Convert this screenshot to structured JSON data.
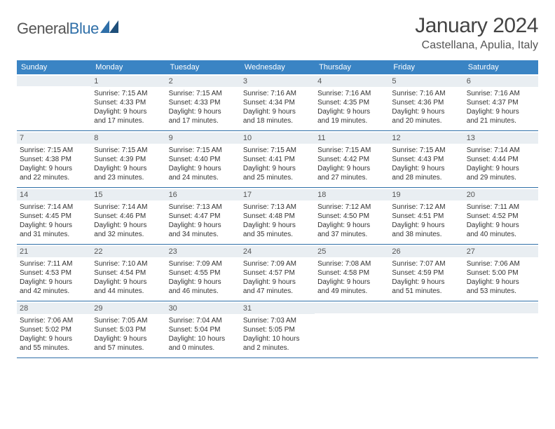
{
  "logo": {
    "text1": "General",
    "text2": "Blue"
  },
  "title": "January 2024",
  "location": "Castellana, Apulia, Italy",
  "dayHeaders": [
    "Sunday",
    "Monday",
    "Tuesday",
    "Wednesday",
    "Thursday",
    "Friday",
    "Saturday"
  ],
  "colors": {
    "headerBg": "#3a84c4",
    "accent": "#2f6fa8",
    "dayNumBg": "#e9eef2",
    "text": "#333333"
  },
  "grid": {
    "rows": 5,
    "cols": 7,
    "firstDayIndex": 1,
    "daysInMonth": 31
  },
  "days": [
    {
      "n": 1,
      "sunrise": "7:15 AM",
      "sunset": "4:33 PM",
      "dl1": "9 hours",
      "dl2": "and 17 minutes."
    },
    {
      "n": 2,
      "sunrise": "7:15 AM",
      "sunset": "4:33 PM",
      "dl1": "9 hours",
      "dl2": "and 17 minutes."
    },
    {
      "n": 3,
      "sunrise": "7:16 AM",
      "sunset": "4:34 PM",
      "dl1": "9 hours",
      "dl2": "and 18 minutes."
    },
    {
      "n": 4,
      "sunrise": "7:16 AM",
      "sunset": "4:35 PM",
      "dl1": "9 hours",
      "dl2": "and 19 minutes."
    },
    {
      "n": 5,
      "sunrise": "7:16 AM",
      "sunset": "4:36 PM",
      "dl1": "9 hours",
      "dl2": "and 20 minutes."
    },
    {
      "n": 6,
      "sunrise": "7:16 AM",
      "sunset": "4:37 PM",
      "dl1": "9 hours",
      "dl2": "and 21 minutes."
    },
    {
      "n": 7,
      "sunrise": "7:15 AM",
      "sunset": "4:38 PM",
      "dl1": "9 hours",
      "dl2": "and 22 minutes."
    },
    {
      "n": 8,
      "sunrise": "7:15 AM",
      "sunset": "4:39 PM",
      "dl1": "9 hours",
      "dl2": "and 23 minutes."
    },
    {
      "n": 9,
      "sunrise": "7:15 AM",
      "sunset": "4:40 PM",
      "dl1": "9 hours",
      "dl2": "and 24 minutes."
    },
    {
      "n": 10,
      "sunrise": "7:15 AM",
      "sunset": "4:41 PM",
      "dl1": "9 hours",
      "dl2": "and 25 minutes."
    },
    {
      "n": 11,
      "sunrise": "7:15 AM",
      "sunset": "4:42 PM",
      "dl1": "9 hours",
      "dl2": "and 27 minutes."
    },
    {
      "n": 12,
      "sunrise": "7:15 AM",
      "sunset": "4:43 PM",
      "dl1": "9 hours",
      "dl2": "and 28 minutes."
    },
    {
      "n": 13,
      "sunrise": "7:14 AM",
      "sunset": "4:44 PM",
      "dl1": "9 hours",
      "dl2": "and 29 minutes."
    },
    {
      "n": 14,
      "sunrise": "7:14 AM",
      "sunset": "4:45 PM",
      "dl1": "9 hours",
      "dl2": "and 31 minutes."
    },
    {
      "n": 15,
      "sunrise": "7:14 AM",
      "sunset": "4:46 PM",
      "dl1": "9 hours",
      "dl2": "and 32 minutes."
    },
    {
      "n": 16,
      "sunrise": "7:13 AM",
      "sunset": "4:47 PM",
      "dl1": "9 hours",
      "dl2": "and 34 minutes."
    },
    {
      "n": 17,
      "sunrise": "7:13 AM",
      "sunset": "4:48 PM",
      "dl1": "9 hours",
      "dl2": "and 35 minutes."
    },
    {
      "n": 18,
      "sunrise": "7:12 AM",
      "sunset": "4:50 PM",
      "dl1": "9 hours",
      "dl2": "and 37 minutes."
    },
    {
      "n": 19,
      "sunrise": "7:12 AM",
      "sunset": "4:51 PM",
      "dl1": "9 hours",
      "dl2": "and 38 minutes."
    },
    {
      "n": 20,
      "sunrise": "7:11 AM",
      "sunset": "4:52 PM",
      "dl1": "9 hours",
      "dl2": "and 40 minutes."
    },
    {
      "n": 21,
      "sunrise": "7:11 AM",
      "sunset": "4:53 PM",
      "dl1": "9 hours",
      "dl2": "and 42 minutes."
    },
    {
      "n": 22,
      "sunrise": "7:10 AM",
      "sunset": "4:54 PM",
      "dl1": "9 hours",
      "dl2": "and 44 minutes."
    },
    {
      "n": 23,
      "sunrise": "7:09 AM",
      "sunset": "4:55 PM",
      "dl1": "9 hours",
      "dl2": "and 46 minutes."
    },
    {
      "n": 24,
      "sunrise": "7:09 AM",
      "sunset": "4:57 PM",
      "dl1": "9 hours",
      "dl2": "and 47 minutes."
    },
    {
      "n": 25,
      "sunrise": "7:08 AM",
      "sunset": "4:58 PM",
      "dl1": "9 hours",
      "dl2": "and 49 minutes."
    },
    {
      "n": 26,
      "sunrise": "7:07 AM",
      "sunset": "4:59 PM",
      "dl1": "9 hours",
      "dl2": "and 51 minutes."
    },
    {
      "n": 27,
      "sunrise": "7:06 AM",
      "sunset": "5:00 PM",
      "dl1": "9 hours",
      "dl2": "and 53 minutes."
    },
    {
      "n": 28,
      "sunrise": "7:06 AM",
      "sunset": "5:02 PM",
      "dl1": "9 hours",
      "dl2": "and 55 minutes."
    },
    {
      "n": 29,
      "sunrise": "7:05 AM",
      "sunset": "5:03 PM",
      "dl1": "9 hours",
      "dl2": "and 57 minutes."
    },
    {
      "n": 30,
      "sunrise": "7:04 AM",
      "sunset": "5:04 PM",
      "dl1": "10 hours",
      "dl2": "and 0 minutes."
    },
    {
      "n": 31,
      "sunrise": "7:03 AM",
      "sunset": "5:05 PM",
      "dl1": "10 hours",
      "dl2": "and 2 minutes."
    }
  ],
  "labels": {
    "sunrise": "Sunrise:",
    "sunset": "Sunset:",
    "daylight": "Daylight:"
  }
}
